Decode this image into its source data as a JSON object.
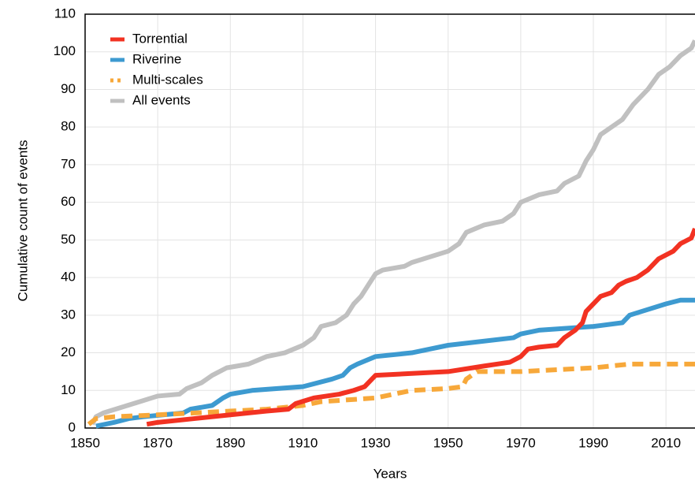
{
  "chart_data": {
    "type": "line",
    "xlabel": "Years",
    "ylabel": "Cumulative count of events",
    "xlim": [
      1850,
      2018
    ],
    "ylim": [
      0,
      110
    ],
    "xticks": [
      1850,
      1870,
      1890,
      1910,
      1930,
      1950,
      1970,
      1990,
      2010
    ],
    "yticks": [
      0,
      10,
      20,
      30,
      40,
      50,
      60,
      70,
      80,
      90,
      100,
      110
    ],
    "grid": true,
    "legend": "upper left",
    "series": [
      {
        "name": "Torrential",
        "color": "#f23222",
        "linestyle": "solid",
        "x": [
          1867,
          1870,
          1880,
          1890,
          1900,
          1906,
          1908,
          1913,
          1920,
          1924,
          1927,
          1929,
          1930,
          1950,
          1960,
          1967,
          1970,
          1972,
          1975,
          1980,
          1982,
          1985,
          1987,
          1988,
          1990,
          1992,
          1995,
          1997,
          1999,
          2002,
          2005,
          2008,
          2012,
          2014,
          2017,
          2018
        ],
        "values": [
          1,
          1.5,
          2.5,
          3.5,
          4.5,
          5,
          6.5,
          8,
          9,
          10,
          11,
          13,
          14,
          15,
          16.5,
          17.5,
          19,
          21,
          21.5,
          22,
          24,
          26,
          28,
          31,
          33,
          35,
          36,
          38,
          39,
          40,
          42,
          45,
          47,
          49,
          50.5,
          53
        ]
      },
      {
        "name": "Riverine",
        "color": "#3d9ad0",
        "linestyle": "solid",
        "x": [
          1853,
          1858,
          1862,
          1866,
          1877,
          1879,
          1885,
          1888,
          1890,
          1896,
          1910,
          1918,
          1921,
          1923,
          1925,
          1930,
          1940,
          1950,
          1968,
          1970,
          1975,
          1990,
          1998,
          2000,
          2010,
          2014,
          2018
        ],
        "values": [
          0.5,
          1.5,
          2.5,
          3,
          4,
          5,
          6,
          8,
          9,
          10,
          11,
          13,
          14,
          16,
          17,
          19,
          20,
          22,
          24,
          25,
          26,
          27,
          28,
          30,
          33,
          34,
          34
        ]
      },
      {
        "name": "Multi-scales",
        "color": "#f7a83a",
        "linestyle": "dashed",
        "x": [
          1851,
          1853,
          1858,
          1870,
          1880,
          1890,
          1900,
          1910,
          1915,
          1930,
          1935,
          1940,
          1950,
          1954,
          1955,
          1958,
          1970,
          1990,
          2000,
          2018
        ],
        "values": [
          1,
          2.5,
          3,
          3.5,
          4,
          4.5,
          5,
          6,
          7,
          8,
          9,
          10,
          10.5,
          11,
          13,
          15,
          15,
          16,
          17,
          17
        ]
      },
      {
        "name": "All events",
        "color": "#c0c0c0",
        "linestyle": "solid",
        "x": [
          1852,
          1853,
          1855,
          1860,
          1865,
          1870,
          1876,
          1878,
          1882,
          1885,
          1889,
          1895,
          1900,
          1905,
          1910,
          1913,
          1915,
          1919,
          1922,
          1924,
          1926,
          1928,
          1930,
          1932,
          1938,
          1940,
          1950,
          1953,
          1955,
          1960,
          1965,
          1968,
          1970,
          1975,
          1980,
          1982,
          1986,
          1988,
          1990,
          1992,
          1995,
          1998,
          2001,
          2005,
          2008,
          2011,
          2014,
          2017,
          2018
        ],
        "values": [
          1,
          3,
          4,
          5.5,
          7,
          8.5,
          9,
          10.5,
          12,
          14,
          16,
          17,
          19,
          20,
          22,
          24,
          27,
          28,
          30,
          33,
          35,
          38,
          41,
          42,
          43,
          44,
          47,
          49,
          52,
          54,
          55,
          57,
          60,
          62,
          63,
          65,
          67,
          71,
          74,
          78,
          80,
          82,
          86,
          90,
          94,
          96,
          99,
          101,
          103
        ]
      }
    ]
  }
}
